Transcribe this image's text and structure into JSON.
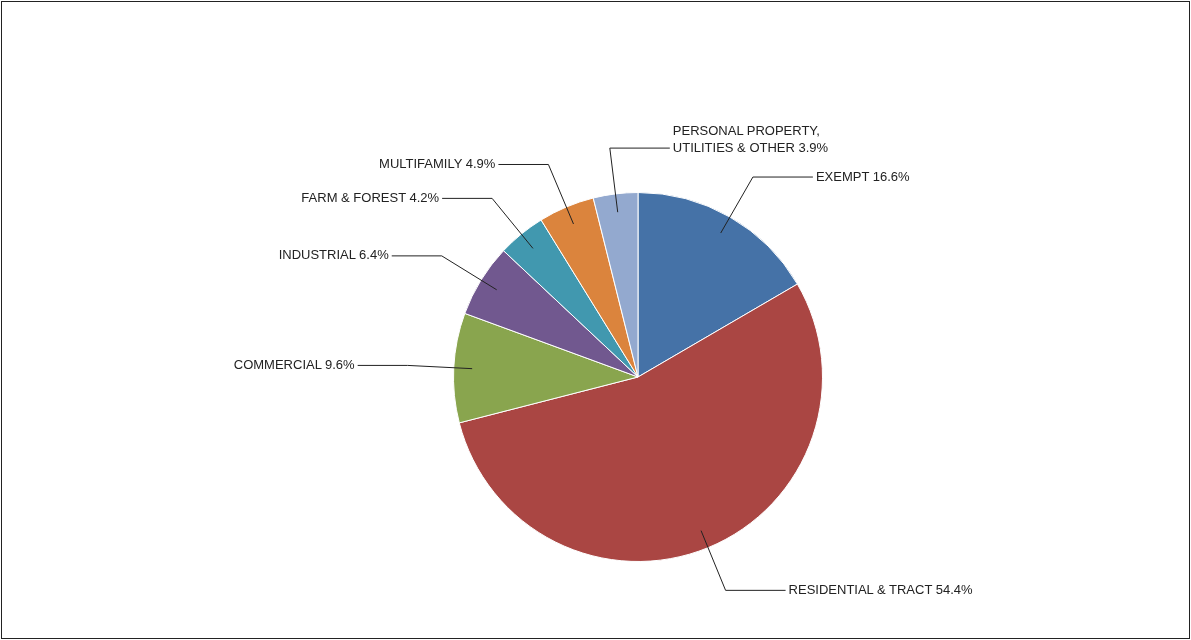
{
  "chart_data": {
    "type": "pie",
    "categories": [
      "EXEMPT",
      "RESIDENTIAL & TRACT",
      "COMMERCIAL",
      "INDUSTRIAL",
      "FARM & FOREST",
      "MULTIFAMILY",
      "PERSONAL PROPERTY, UTILITIES & OTHER"
    ],
    "values": [
      16.6,
      54.4,
      9.6,
      6.4,
      4.2,
      4.9,
      3.9
    ],
    "value_labels": [
      "16.6%",
      "54.4%",
      "9.6%",
      "6.4%",
      "4.2%",
      "4.9%",
      "3.9%"
    ],
    "colors": [
      "#4572a7",
      "#aa4643",
      "#89a54e",
      "#71588f",
      "#4198af",
      "#db843d",
      "#93a9cf"
    ]
  }
}
